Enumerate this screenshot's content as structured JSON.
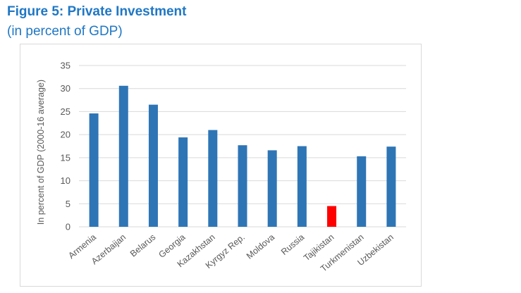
{
  "figure": {
    "title": "Figure 5: Private Investment",
    "subtitle": "(in percent of GDP)"
  },
  "colors": {
    "title": "#1f77c4",
    "bar": "#2e75b6",
    "highlight": "#ff0000",
    "grid": "#d9d9d9",
    "text": "#595959"
  },
  "chart_data": {
    "type": "bar",
    "title": "",
    "xlabel": "",
    "ylabel": "In percent of GDP (2000-16 average)",
    "ylim": [
      0,
      35
    ],
    "yticks": [
      0,
      5,
      10,
      15,
      20,
      25,
      30,
      35
    ],
    "grid": true,
    "legend": "none",
    "categories": [
      "Armenia",
      "Azerbaijan",
      "Belarus",
      "Georgia",
      "Kazakhstan",
      "Kyrgyz Rep.",
      "Moldova",
      "Russia",
      "Tajikistan",
      "Turkmenistan",
      "Uzbekistan"
    ],
    "values": [
      24.6,
      30.6,
      26.5,
      19.4,
      21.0,
      17.7,
      16.6,
      17.5,
      4.5,
      15.3,
      17.4
    ],
    "highlighted_category": "Tajikistan"
  }
}
